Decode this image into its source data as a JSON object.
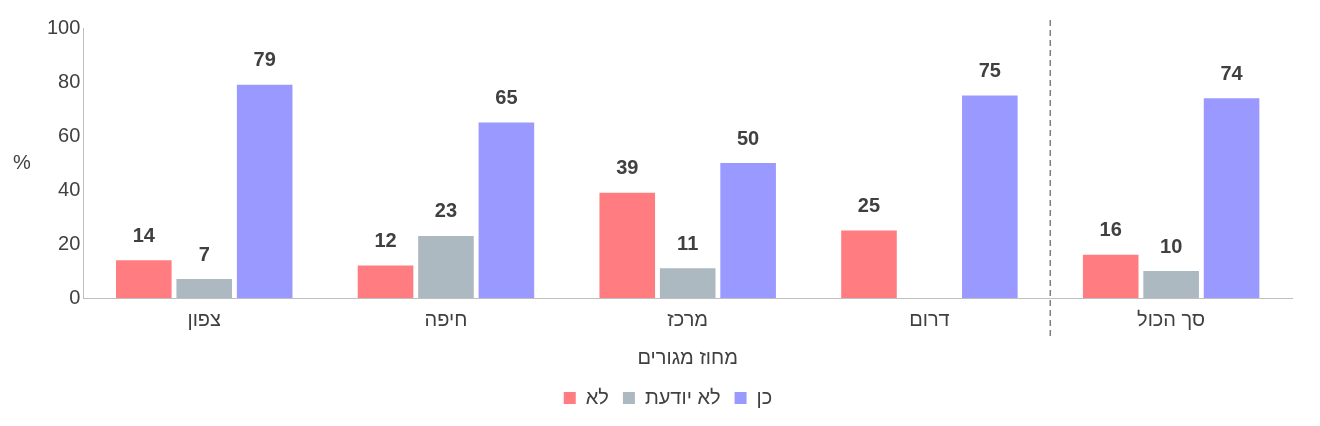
{
  "chart_data": {
    "type": "bar",
    "xlabel": "מחוז מגורים",
    "ylabel": "%",
    "categories": [
      "צפון",
      "חיפה",
      "מרכז",
      "דרום",
      "סך הכול"
    ],
    "series": [
      {
        "name": "לא",
        "color": "#ff7c80",
        "values": [
          14,
          12,
          39,
          25,
          16
        ]
      },
      {
        "name": "לא יודעת",
        "color": "#adb9c1",
        "values": [
          7,
          23,
          11,
          null,
          10
        ]
      },
      {
        "name": "כן",
        "color": "#9999ff",
        "values": [
          79,
          65,
          50,
          75,
          74
        ]
      }
    ],
    "ylim": [
      0,
      100
    ],
    "yticks": [
      0,
      20,
      40,
      60,
      80,
      100
    ],
    "grid": false,
    "legend": "bottom",
    "data_labels": true
  }
}
